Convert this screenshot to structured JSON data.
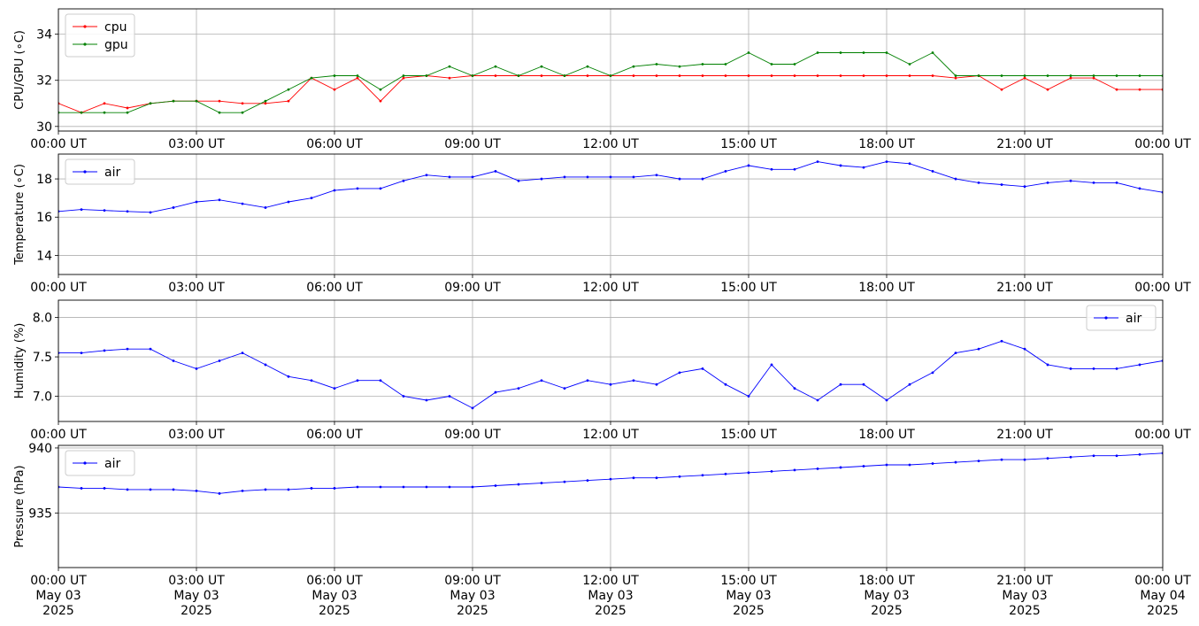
{
  "x_tick_labels": [
    "00:00 UT",
    "03:00 UT",
    "06:00 UT",
    "09:00 UT",
    "12:00 UT",
    "15:00 UT",
    "18:00 UT",
    "21:00 UT",
    "00:00 UT"
  ],
  "date_line1": [
    "May 03",
    "May 03",
    "May 03",
    "May 03",
    "May 03",
    "May 03",
    "May 03",
    "May 03",
    "May 04"
  ],
  "date_line2": [
    "2025",
    "2025",
    "2025",
    "2025",
    "2025",
    "2025",
    "2025",
    "2025",
    "2025"
  ],
  "chart_data": [
    {
      "type": "line",
      "ylabel": "CPU/GPU (∘C)",
      "xlim": [
        "2025-05-03 00:00",
        "2025-05-04 00:00"
      ],
      "ylim": [
        29.8,
        35.1
      ],
      "yticks": [
        30,
        32,
        34
      ],
      "ytick_labels": [
        "30",
        "32",
        "34"
      ],
      "legend_position": "top-left",
      "grid": true,
      "series": [
        {
          "name": "cpu",
          "color": "#ff0000",
          "x_hours": [
            0,
            0.5,
            1,
            1.5,
            2,
            2.5,
            3,
            3.5,
            4,
            4.5,
            5,
            5.5,
            6,
            6.5,
            7,
            7.5,
            8,
            8.5,
            9,
            9.5,
            10,
            10.5,
            11,
            11.5,
            12,
            12.5,
            13,
            13.5,
            14,
            14.5,
            15,
            15.5,
            16,
            16.5,
            17,
            17.5,
            18,
            18.5,
            19,
            19.5,
            20,
            20.5,
            21,
            21.5,
            22,
            22.5,
            23,
            23.5,
            24
          ],
          "values": [
            31.0,
            30.6,
            31.0,
            30.8,
            31.0,
            31.1,
            31.1,
            31.1,
            31.0,
            31.0,
            31.1,
            32.1,
            31.6,
            32.1,
            31.1,
            32.1,
            32.2,
            32.1,
            32.2,
            32.2,
            32.2,
            32.2,
            32.2,
            32.2,
            32.2,
            32.2,
            32.2,
            32.2,
            32.2,
            32.2,
            32.2,
            32.2,
            32.2,
            32.2,
            32.2,
            32.2,
            32.2,
            32.2,
            32.2,
            32.1,
            32.2,
            31.6,
            32.1,
            31.6,
            32.1,
            32.1,
            31.6,
            31.6,
            31.6
          ]
        },
        {
          "name": "gpu",
          "color": "#008000",
          "x_hours": [
            0,
            0.5,
            1,
            1.5,
            2,
            2.5,
            3,
            3.5,
            4,
            4.5,
            5,
            5.5,
            6,
            6.5,
            7,
            7.5,
            8,
            8.5,
            9,
            9.5,
            10,
            10.5,
            11,
            11.5,
            12,
            12.5,
            13,
            13.5,
            14,
            14.5,
            15,
            15.5,
            16,
            16.5,
            17,
            17.5,
            18,
            18.5,
            19,
            19.5,
            20,
            20.5,
            21,
            21.5,
            22,
            22.5,
            23,
            23.5,
            24
          ],
          "values": [
            30.6,
            30.6,
            30.6,
            30.6,
            31.0,
            31.1,
            31.1,
            30.6,
            30.6,
            31.1,
            31.6,
            32.1,
            32.2,
            32.2,
            31.6,
            32.2,
            32.2,
            32.6,
            32.2,
            32.6,
            32.2,
            32.6,
            32.2,
            32.6,
            32.2,
            32.6,
            32.7,
            32.6,
            32.7,
            32.7,
            33.2,
            32.7,
            32.7,
            33.2,
            33.2,
            33.2,
            33.2,
            32.7,
            33.2,
            32.2,
            32.2,
            32.2,
            32.2,
            32.2,
            32.2,
            32.2,
            32.2,
            32.2,
            32.2
          ]
        }
      ]
    },
    {
      "type": "line",
      "ylabel": "Temperature (∘C)",
      "xlim": [
        "2025-05-03 00:00",
        "2025-05-04 00:00"
      ],
      "ylim": [
        13.0,
        19.3
      ],
      "yticks": [
        14,
        16,
        18
      ],
      "ytick_labels": [
        "14",
        "16",
        "18"
      ],
      "legend_position": "top-left",
      "grid": true,
      "series": [
        {
          "name": "air",
          "color": "#0000ff",
          "x_hours": [
            0,
            0.5,
            1,
            1.5,
            2,
            2.5,
            3,
            3.5,
            4,
            4.5,
            5,
            5.5,
            6,
            6.5,
            7,
            7.5,
            8,
            8.5,
            9,
            9.5,
            10,
            10.5,
            11,
            11.5,
            12,
            12.5,
            13,
            13.5,
            14,
            14.5,
            15,
            15.5,
            16,
            16.5,
            17,
            17.5,
            18,
            18.5,
            19,
            19.5,
            20,
            20.5,
            21,
            21.5,
            22,
            22.5,
            23,
            23.5,
            24
          ],
          "values": [
            16.3,
            16.4,
            16.35,
            16.3,
            16.25,
            16.5,
            16.8,
            16.9,
            16.7,
            16.5,
            16.8,
            17.0,
            17.4,
            17.5,
            17.5,
            17.9,
            18.2,
            18.1,
            18.1,
            18.4,
            17.9,
            18.0,
            18.1,
            18.1,
            18.1,
            18.1,
            18.2,
            18.0,
            18.0,
            18.4,
            18.7,
            18.5,
            18.5,
            18.9,
            18.7,
            18.6,
            18.9,
            18.8,
            18.4,
            18.0,
            17.8,
            17.7,
            17.6,
            17.8,
            17.9,
            17.8,
            17.8,
            17.5,
            17.3
          ]
        }
      ]
    },
    {
      "type": "line",
      "ylabel": "Humidity (%)",
      "xlim": [
        "2025-05-03 00:00",
        "2025-05-04 00:00"
      ],
      "ylim": [
        6.68,
        8.22
      ],
      "yticks": [
        7.0,
        7.5,
        8.0
      ],
      "ytick_labels": [
        "7.0",
        "7.5",
        "8.0"
      ],
      "legend_position": "top-right",
      "grid": true,
      "series": [
        {
          "name": "air",
          "color": "#0000ff",
          "x_hours": [
            0,
            0.5,
            1,
            1.5,
            2,
            2.5,
            3,
            3.5,
            4,
            4.5,
            5,
            5.5,
            6,
            6.5,
            7,
            7.5,
            8,
            8.5,
            9,
            9.5,
            10,
            10.5,
            11,
            11.5,
            12,
            12.5,
            13,
            13.5,
            14,
            14.5,
            15,
            15.5,
            16,
            16.5,
            17,
            17.5,
            18,
            18.5,
            19,
            19.5,
            20,
            20.5,
            21,
            21.5,
            22,
            22.5,
            23,
            23.5,
            24
          ],
          "values": [
            7.55,
            7.55,
            7.58,
            7.6,
            7.6,
            7.45,
            7.35,
            7.45,
            7.55,
            7.4,
            7.25,
            7.2,
            7.1,
            7.2,
            7.2,
            7.0,
            6.95,
            7.0,
            6.85,
            7.05,
            7.1,
            7.2,
            7.1,
            7.2,
            7.15,
            7.2,
            7.15,
            7.3,
            7.35,
            7.15,
            7.0,
            7.4,
            7.1,
            6.95,
            7.15,
            7.15,
            6.95,
            7.15,
            7.3,
            7.55,
            7.6,
            7.7,
            7.6,
            7.4,
            7.35,
            7.35,
            7.35,
            7.4,
            7.45
          ]
        }
      ]
    },
    {
      "type": "line",
      "ylabel": "Pressure (hPa)",
      "xlim": [
        "2025-05-03 00:00",
        "2025-05-04 00:00"
      ],
      "ylim": [
        930.8,
        940.2
      ],
      "yticks": [
        935,
        940
      ],
      "ytick_labels": [
        "935",
        "940"
      ],
      "legend_position": "top-left",
      "grid": true,
      "series": [
        {
          "name": "air",
          "color": "#0000ff",
          "x_hours": [
            0,
            0.5,
            1,
            1.5,
            2,
            2.5,
            3,
            3.5,
            4,
            4.5,
            5,
            5.5,
            6,
            6.5,
            7,
            7.5,
            8,
            8.5,
            9,
            9.5,
            10,
            10.5,
            11,
            11.5,
            12,
            12.5,
            13,
            13.5,
            14,
            14.5,
            15,
            15.5,
            16,
            16.5,
            17,
            17.5,
            18,
            18.5,
            19,
            19.5,
            20,
            20.5,
            21,
            21.5,
            22,
            22.5,
            23,
            23.5,
            24
          ],
          "values": [
            937.0,
            936.9,
            936.9,
            936.8,
            936.8,
            936.8,
            936.7,
            936.5,
            936.7,
            936.8,
            936.8,
            936.9,
            936.9,
            937.0,
            937.0,
            937.0,
            937.0,
            937.0,
            937.0,
            937.1,
            937.2,
            937.3,
            937.4,
            937.5,
            937.6,
            937.7,
            937.7,
            937.8,
            937.9,
            938.0,
            938.1,
            938.2,
            938.3,
            938.4,
            938.5,
            938.6,
            938.7,
            938.7,
            938.8,
            938.9,
            939.0,
            939.1,
            939.1,
            939.2,
            939.3,
            939.4,
            939.4,
            939.5,
            939.6
          ]
        }
      ]
    }
  ]
}
